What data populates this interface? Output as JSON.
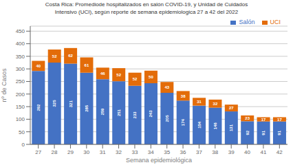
{
  "chart_data": {
    "type": "bar",
    "title": "Costa Rica: Promediode hospitalizados en salón COVID-19, y Unidad de Cuidados\nIntensivo (UCI), según reporte de semana epidemiologica 27 a 42 del 2022",
    "xlabel": "Semana epidemiológica",
    "ylabel": "nº de Casos",
    "categories": [
      "27",
      "28",
      "29",
      "30",
      "31",
      "32",
      "33",
      "34",
      "35",
      "36",
      "37",
      "38",
      "39",
      "40",
      "41",
      "42"
    ],
    "series": [
      {
        "name": "Salón",
        "color": "#4472C4",
        "values": [
          292,
          325,
          321,
          285,
          259,
          251,
          233,
          243,
          205,
          174,
          154,
          146,
          131,
          92,
          91,
          91
        ]
      },
      {
        "name": "UCI",
        "color": "#E36C09",
        "values": [
          40,
          52,
          62,
          61,
          46,
          52,
          52,
          50,
          43,
          38,
          31,
          32,
          27,
          23,
          17,
          17
        ]
      }
    ],
    "ylim": [
      0,
      470
    ],
    "yticks": [
      0,
      50,
      100,
      150,
      200,
      250,
      300,
      350,
      400,
      450
    ],
    "stacked": true,
    "grid": true,
    "legend": "upper right",
    "data_labels": true
  }
}
